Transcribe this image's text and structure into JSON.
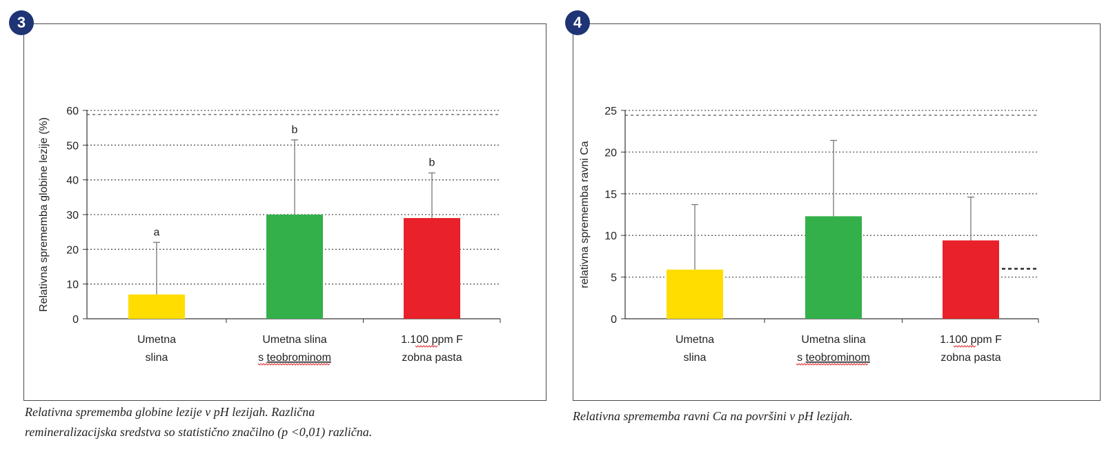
{
  "colors": {
    "yellow": "#ffdd00",
    "green": "#33b04a",
    "red": "#e8212a",
    "badge": "#1f3474",
    "grid": "#555555",
    "error": "#777777"
  },
  "chart_data": [
    {
      "type": "bar",
      "badge": "3",
      "ylabel": "Relativna sprememba globine lezije (%)",
      "ylim": [
        0,
        60
      ],
      "yticks": [
        0,
        10,
        20,
        30,
        40,
        50,
        60
      ],
      "categories": [
        {
          "line1": "Umetna",
          "line2": "slina",
          "squiggle": ""
        },
        {
          "line1": "Umetna slina",
          "line2": "s ",
          "squiggle": "teobrominom"
        },
        {
          "line1": "1.100 ppm F",
          "line2": "zobna pasta",
          "squiggle": ""
        }
      ],
      "values": [
        7,
        30,
        29
      ],
      "errors": [
        22,
        51.5,
        42
      ],
      "sig_labels": [
        "a",
        "b",
        "b"
      ],
      "caption_line1": "Relativna sprememba globine lezije v pH lezijah. Različna",
      "caption_line2": "remineralizacijska sredstva so statistično značilno (p <0,01) različna."
    },
    {
      "type": "bar",
      "badge": "4",
      "ylabel": "relativna sprememba ravni Ca",
      "ylim": [
        0,
        25
      ],
      "yticks": [
        0,
        5,
        10,
        15,
        20,
        25
      ],
      "categories": [
        {
          "line1": "Umetna",
          "line2": "slina",
          "squiggle": ""
        },
        {
          "line1": "Umetna slina",
          "line2": "s ",
          "squiggle": "teobrominom"
        },
        {
          "line1": "1.100 ppm F",
          "line2": "zobna pasta",
          "squiggle": ""
        }
      ],
      "values": [
        5.9,
        12.3,
        9.4
      ],
      "errors": [
        13.7,
        21.4,
        14.6
      ],
      "sig_labels": [
        "",
        "",
        ""
      ],
      "caption_line1": "Relativna sprememba ravni Ca na površini v pH lezijah.",
      "caption_line2": ""
    }
  ]
}
